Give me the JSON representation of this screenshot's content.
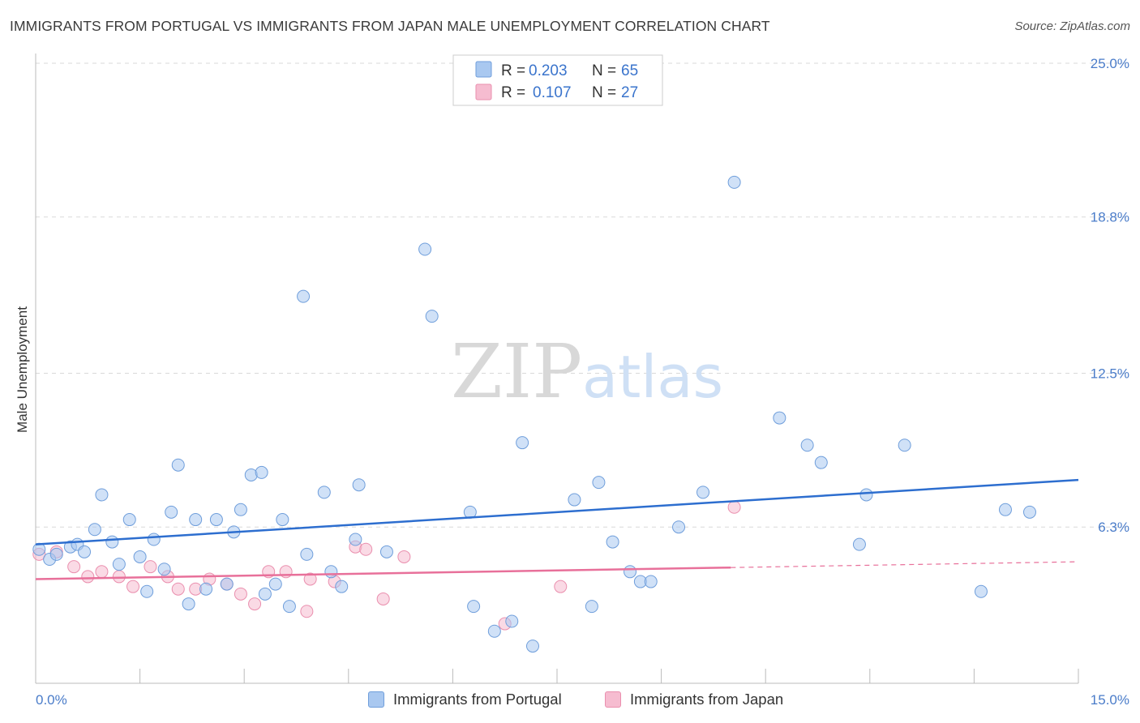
{
  "title": "IMMIGRANTS FROM PORTUGAL VS IMMIGRANTS FROM JAPAN MALE UNEMPLOYMENT CORRELATION CHART",
  "source": "Source: ZipAtlas.com",
  "watermark": {
    "zip": "ZIP",
    "atlas": "atlas"
  },
  "colors": {
    "portugal_fill": "#a9c8f0",
    "portugal_stroke": "#6f9edb",
    "portugal_line": "#2d6ecf",
    "japan_fill": "#f6bcd0",
    "japan_stroke": "#ea8fae",
    "japan_line": "#e8709a",
    "axis_text": "#4a7cc9",
    "grid": "#d9d9d9"
  },
  "legend": {
    "rows": [
      {
        "r_label": "R =",
        "r_value": "0.203",
        "n_label": "N =",
        "n_value": "65"
      },
      {
        "r_label": "R =",
        "r_value": "0.107",
        "n_label": "N =",
        "n_value": "27"
      }
    ]
  },
  "bottom_legend": {
    "portugal": "Immigrants from Portugal",
    "japan": "Immigrants from Japan"
  },
  "chart_data": {
    "type": "scatter",
    "title": "IMMIGRANTS FROM PORTUGAL VS IMMIGRANTS FROM JAPAN MALE UNEMPLOYMENT CORRELATION CHART",
    "xlabel": "",
    "ylabel": "Male Unemployment",
    "xlim": [
      0,
      15
    ],
    "ylim": [
      0,
      25
    ],
    "x_tick_labels": {
      "min": "0.0%",
      "max": "15.0%"
    },
    "y_ticks": [
      6.3,
      12.5,
      18.8,
      25.0
    ],
    "y_tick_labels": [
      "6.3%",
      "12.5%",
      "18.8%",
      "25.0%"
    ],
    "grid": true,
    "legend_position": "top-center",
    "series": [
      {
        "name": "Immigrants from Portugal",
        "r": 0.203,
        "n": 65,
        "trend": {
          "x": [
            0,
            15
          ],
          "y": [
            5.6,
            8.2
          ],
          "dashed_from": null
        },
        "points": [
          [
            0.05,
            5.4
          ],
          [
            0.2,
            5.0
          ],
          [
            0.3,
            5.2
          ],
          [
            0.5,
            5.5
          ],
          [
            0.6,
            5.6
          ],
          [
            0.7,
            5.3
          ],
          [
            0.85,
            6.2
          ],
          [
            0.95,
            7.6
          ],
          [
            1.1,
            5.7
          ],
          [
            1.2,
            4.8
          ],
          [
            1.35,
            6.6
          ],
          [
            1.5,
            5.1
          ],
          [
            1.6,
            3.7
          ],
          [
            1.7,
            5.8
          ],
          [
            1.85,
            4.6
          ],
          [
            1.95,
            6.9
          ],
          [
            2.05,
            8.8
          ],
          [
            2.2,
            3.2
          ],
          [
            2.3,
            6.6
          ],
          [
            2.45,
            3.8
          ],
          [
            2.6,
            6.6
          ],
          [
            2.75,
            4.0
          ],
          [
            2.85,
            6.1
          ],
          [
            2.95,
            7.0
          ],
          [
            3.1,
            8.4
          ],
          [
            3.25,
            8.5
          ],
          [
            3.3,
            3.6
          ],
          [
            3.45,
            4.0
          ],
          [
            3.55,
            6.6
          ],
          [
            3.65,
            3.1
          ],
          [
            3.85,
            15.6
          ],
          [
            3.9,
            5.2
          ],
          [
            4.15,
            7.7
          ],
          [
            4.25,
            4.5
          ],
          [
            4.4,
            3.9
          ],
          [
            4.6,
            5.8
          ],
          [
            4.65,
            8.0
          ],
          [
            5.05,
            5.3
          ],
          [
            5.6,
            17.5
          ],
          [
            5.7,
            14.8
          ],
          [
            6.25,
            6.9
          ],
          [
            6.3,
            3.1
          ],
          [
            6.6,
            2.1
          ],
          [
            6.85,
            2.5
          ],
          [
            7.0,
            9.7
          ],
          [
            7.15,
            1.5
          ],
          [
            7.75,
            7.4
          ],
          [
            8.0,
            3.1
          ],
          [
            8.1,
            8.1
          ],
          [
            8.3,
            5.7
          ],
          [
            8.55,
            4.5
          ],
          [
            8.7,
            4.1
          ],
          [
            8.85,
            4.1
          ],
          [
            9.25,
            6.3
          ],
          [
            9.6,
            7.7
          ],
          [
            10.05,
            20.2
          ],
          [
            10.7,
            10.7
          ],
          [
            11.1,
            9.6
          ],
          [
            11.3,
            8.9
          ],
          [
            11.85,
            5.6
          ],
          [
            11.95,
            7.6
          ],
          [
            12.5,
            9.6
          ],
          [
            13.6,
            3.7
          ],
          [
            13.95,
            7.0
          ],
          [
            14.3,
            6.9
          ]
        ]
      },
      {
        "name": "Immigrants from Japan",
        "r": 0.107,
        "n": 27,
        "trend": {
          "x": [
            0,
            15
          ],
          "y": [
            4.2,
            4.9
          ],
          "dashed_from": 10.0
        },
        "points": [
          [
            0.05,
            5.2
          ],
          [
            0.3,
            5.3
          ],
          [
            0.55,
            4.7
          ],
          [
            0.75,
            4.3
          ],
          [
            0.95,
            4.5
          ],
          [
            1.2,
            4.3
          ],
          [
            1.4,
            3.9
          ],
          [
            1.65,
            4.7
          ],
          [
            1.9,
            4.3
          ],
          [
            2.05,
            3.8
          ],
          [
            2.3,
            3.8
          ],
          [
            2.5,
            4.2
          ],
          [
            2.75,
            4.0
          ],
          [
            2.95,
            3.6
          ],
          [
            3.15,
            3.2
          ],
          [
            3.35,
            4.5
          ],
          [
            3.6,
            4.5
          ],
          [
            3.9,
            2.9
          ],
          [
            3.95,
            4.2
          ],
          [
            4.3,
            4.1
          ],
          [
            4.6,
            5.5
          ],
          [
            4.75,
            5.4
          ],
          [
            5.0,
            3.4
          ],
          [
            5.3,
            5.1
          ],
          [
            6.75,
            2.4
          ],
          [
            7.55,
            3.9
          ],
          [
            10.05,
            7.1
          ]
        ]
      }
    ]
  }
}
